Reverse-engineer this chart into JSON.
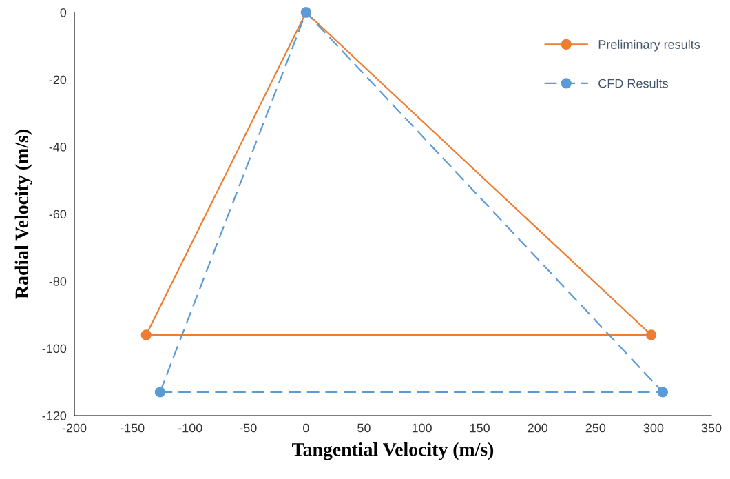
{
  "chart_data": {
    "type": "line",
    "xlabel": "Tangential Velocity (m/s)",
    "ylabel": "Radial Velocity (m/s)",
    "xlim": [
      -200,
      350
    ],
    "xticks": [
      -200,
      -150,
      -100,
      -50,
      0,
      50,
      100,
      150,
      200,
      250,
      300,
      350
    ],
    "ylim": [
      -120,
      0
    ],
    "yticks": [
      -120,
      -100,
      -80,
      -60,
      -40,
      -20,
      0
    ],
    "grid": false,
    "legend": "top right",
    "marker": "circle",
    "series": [
      {
        "name": "Preliminary results",
        "color": "#ed7d31",
        "line_style": "solid",
        "x": [
          -138,
          0,
          298
        ],
        "values": [
          -96,
          0,
          -96
        ]
      },
      {
        "color": "#ed7d31",
        "line_style": "solid",
        "marker": "none",
        "x": [
          -138,
          298
        ],
        "values": [
          -96,
          -96
        ]
      },
      {
        "name": "CFD Results",
        "color": "#5b9bd5",
        "line_style": "dashed",
        "x": [
          -126,
          0,
          308
        ],
        "values": [
          -113,
          0,
          -113
        ]
      },
      {
        "color": "#5b9bd5",
        "line_style": "dashed",
        "marker": "none",
        "x": [
          -126,
          308
        ],
        "values": [
          -113,
          -113
        ]
      }
    ]
  }
}
